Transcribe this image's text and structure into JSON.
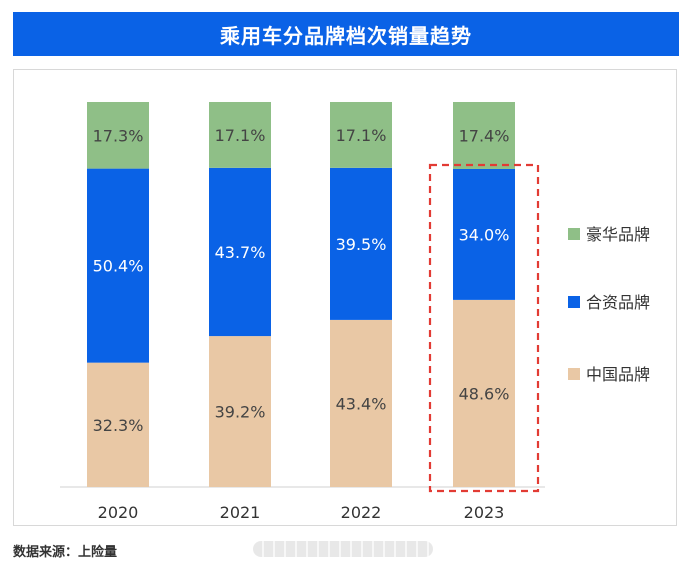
{
  "title": "乘用车分品牌档次销量趋势",
  "source": "数据来源：上险量",
  "colors": {
    "title_bg": "#0a62e6",
    "luxury": "#8fbf87",
    "joint": "#0a62e6",
    "chinese": "#e9c8a5",
    "highlight": "#e23b34"
  },
  "chart_data": {
    "type": "bar",
    "stacked": true,
    "percent": true,
    "title": "乘用车分品牌档次销量趋势",
    "categories": [
      "2020",
      "2021",
      "2022",
      "2023"
    ],
    "series": [
      {
        "name": "中国品牌",
        "values": [
          32.3,
          39.2,
          43.4,
          48.6
        ],
        "labels": [
          "32.3%",
          "39.2%",
          "43.4%",
          "48.6%"
        ],
        "color": "#e9c8a5"
      },
      {
        "name": "合资品牌",
        "values": [
          50.4,
          43.7,
          39.5,
          34.0
        ],
        "labels": [
          "50.4%",
          "43.7%",
          "39.5%",
          "34.0%"
        ],
        "color": "#0a62e6"
      },
      {
        "name": "豪华品牌",
        "values": [
          17.3,
          17.1,
          17.1,
          17.4
        ],
        "labels": [
          "17.3%",
          "17.1%",
          "17.1%",
          "17.4%"
        ],
        "color": "#8fbf87"
      }
    ],
    "legend": [
      "豪华品牌",
      "合资品牌",
      "中国品牌"
    ],
    "legend_position": "right",
    "highlight_category": "2023",
    "ylim": [
      0,
      100
    ],
    "grid": false
  }
}
